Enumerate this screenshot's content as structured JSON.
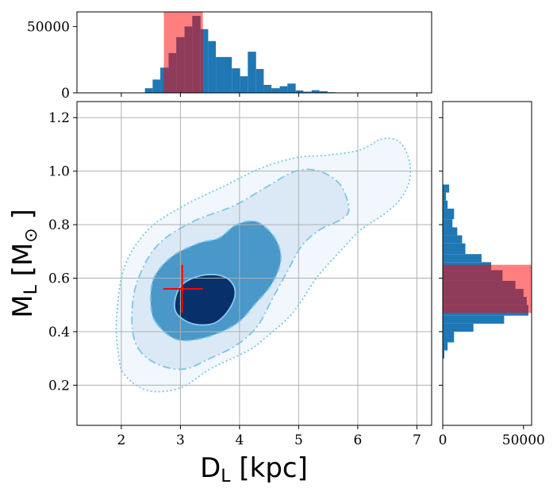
{
  "chart_data": [
    {
      "type": "contour",
      "name": "joint-posterior",
      "xlabel": "D",
      "xlabel_sub": "L",
      "xlabel_unit": " [kpc]",
      "ylabel": "M",
      "ylabel_sub": "L",
      "ylabel_unit": " [M",
      "ylabel_unit_sub": "⊙",
      "ylabel_unit_end": " ]",
      "xlim": [
        1.25,
        7.25
      ],
      "ylim": [
        0.05,
        1.26
      ],
      "xticks": [
        2,
        3,
        4,
        5,
        6,
        7
      ],
      "xtick_labels": [
        "2",
        "3",
        "4",
        "5",
        "6",
        "7"
      ],
      "yticks": [
        0.2,
        0.4,
        0.6,
        0.8,
        1.0,
        1.2
      ],
      "ytick_labels": [
        "0.2",
        "0.4",
        "0.6",
        "0.8",
        "1.0",
        "1.2"
      ],
      "grid": true,
      "contours": [
        {
          "level": "3-sigma",
          "fill": "#f1f7fd",
          "stroke": "#7cc6e6",
          "dash": "dotted",
          "points": [
            [
              2.05,
              0.24
            ],
            [
              2.45,
              0.18
            ],
            [
              3.0,
              0.19
            ],
            [
              3.5,
              0.26
            ],
            [
              4.15,
              0.33
            ],
            [
              4.45,
              0.38
            ],
            [
              4.9,
              0.47
            ],
            [
              5.3,
              0.6
            ],
            [
              5.7,
              0.7
            ],
            [
              6.05,
              0.78
            ],
            [
              6.45,
              0.84
            ],
            [
              6.7,
              0.89
            ],
            [
              6.87,
              0.96
            ],
            [
              6.87,
              1.04
            ],
            [
              6.7,
              1.11
            ],
            [
              6.4,
              1.12
            ],
            [
              6.05,
              1.08
            ],
            [
              5.5,
              1.06
            ],
            [
              4.95,
              1.05
            ],
            [
              4.35,
              1.01
            ],
            [
              3.7,
              0.94
            ],
            [
              3.05,
              0.87
            ],
            [
              2.45,
              0.78
            ],
            [
              2.05,
              0.64
            ],
            [
              1.92,
              0.45
            ],
            [
              1.95,
              0.32
            ]
          ]
        },
        {
          "level": "2-sigma",
          "fill": "#dbe9f6",
          "stroke": "#7cc6e6",
          "dash": "dashdot",
          "points": [
            [
              2.28,
              0.34
            ],
            [
              2.6,
              0.28
            ],
            [
              3.05,
              0.26
            ],
            [
              3.5,
              0.3
            ],
            [
              3.95,
              0.35
            ],
            [
              4.3,
              0.42
            ],
            [
              4.55,
              0.52
            ],
            [
              4.82,
              0.63
            ],
            [
              5.05,
              0.72
            ],
            [
              5.35,
              0.78
            ],
            [
              5.72,
              0.82
            ],
            [
              5.85,
              0.86
            ],
            [
              5.7,
              0.95
            ],
            [
              5.35,
              1.0
            ],
            [
              4.95,
              1.0
            ],
            [
              4.45,
              0.94
            ],
            [
              3.9,
              0.87
            ],
            [
              3.2,
              0.81
            ],
            [
              2.6,
              0.72
            ],
            [
              2.26,
              0.58
            ],
            [
              2.18,
              0.44
            ]
          ]
        },
        {
          "level": "1-sigma",
          "fill": "#4a97c9",
          "stroke": "#7cc6e6",
          "dash": "dashed",
          "points": [
            [
              2.6,
              0.43
            ],
            [
              2.95,
              0.37
            ],
            [
              3.45,
              0.38
            ],
            [
              3.95,
              0.43
            ],
            [
              4.25,
              0.5
            ],
            [
              4.55,
              0.58
            ],
            [
              4.7,
              0.67
            ],
            [
              4.6,
              0.75
            ],
            [
              4.3,
              0.81
            ],
            [
              3.95,
              0.8
            ],
            [
              3.65,
              0.75
            ],
            [
              3.3,
              0.73
            ],
            [
              2.85,
              0.68
            ],
            [
              2.55,
              0.6
            ],
            [
              2.5,
              0.5
            ]
          ]
        },
        {
          "level": "core",
          "fill": "#08306b",
          "stroke": "#8cc8ef",
          "dash": "solid",
          "points": [
            [
              2.93,
              0.47
            ],
            [
              3.2,
              0.43
            ],
            [
              3.55,
              0.43
            ],
            [
              3.78,
              0.47
            ],
            [
              3.92,
              0.53
            ],
            [
              3.88,
              0.58
            ],
            [
              3.68,
              0.61
            ],
            [
              3.35,
              0.61
            ],
            [
              3.05,
              0.58
            ],
            [
              2.92,
              0.53
            ]
          ]
        }
      ],
      "marker": {
        "x": 3.03,
        "y": 0.56,
        "x_err": [
          0.32,
          0.35
        ],
        "y_err": [
          0.09,
          0.09
        ],
        "color": "#ff0000"
      }
    },
    {
      "type": "histogram",
      "name": "top-histogram",
      "orientation": "vertical",
      "xlim": [
        1.25,
        7.25
      ],
      "ylim": [
        0,
        61000
      ],
      "yticks": [
        0,
        50000
      ],
      "ytick_labels": [
        "0",
        "50000"
      ],
      "bar_color": "#1f77b4",
      "bins": [
        [
          2.4,
          2.53,
          3500
        ],
        [
          2.53,
          2.66,
          10000
        ],
        [
          2.66,
          2.8,
          19000
        ],
        [
          2.8,
          2.93,
          30000
        ],
        [
          2.93,
          3.07,
          42000
        ],
        [
          3.07,
          3.2,
          50000
        ],
        [
          3.2,
          3.34,
          58000
        ],
        [
          3.34,
          3.47,
          48000
        ],
        [
          3.47,
          3.6,
          39000
        ],
        [
          3.6,
          3.74,
          27000
        ],
        [
          3.74,
          3.87,
          27000
        ],
        [
          3.87,
          4.01,
          18500
        ],
        [
          4.01,
          4.14,
          12500
        ],
        [
          4.14,
          4.28,
          31000
        ],
        [
          4.28,
          4.41,
          18000
        ],
        [
          4.41,
          4.54,
          6000
        ],
        [
          4.54,
          4.68,
          3500
        ],
        [
          4.68,
          4.81,
          5000
        ],
        [
          4.81,
          4.95,
          7000
        ],
        [
          4.95,
          5.08,
          1800
        ],
        [
          5.08,
          5.22,
          900
        ],
        [
          5.22,
          5.35,
          2000
        ],
        [
          5.35,
          5.49,
          1200
        ],
        [
          5.49,
          5.62,
          500
        ],
        [
          5.62,
          5.75,
          300
        ]
      ],
      "band": {
        "from": 2.72,
        "to": 3.38,
        "color": "#ff0000",
        "opacity": 0.5
      }
    },
    {
      "type": "histogram",
      "name": "right-histogram",
      "orientation": "horizontal",
      "ylim": [
        0.05,
        1.26
      ],
      "xlim": [
        0,
        55000
      ],
      "xticks": [
        0,
        50000
      ],
      "xtick_labels": [
        "0",
        "50000"
      ],
      "bar_color": "#1f77b4",
      "bins": [
        [
          0.3,
          0.33,
          1000
        ],
        [
          0.33,
          0.36,
          3000
        ],
        [
          0.36,
          0.4,
          7000
        ],
        [
          0.4,
          0.43,
          19000
        ],
        [
          0.43,
          0.46,
          38000
        ],
        [
          0.46,
          0.5,
          53000
        ],
        [
          0.5,
          0.53,
          52000
        ],
        [
          0.53,
          0.56,
          50000
        ],
        [
          0.56,
          0.59,
          45000
        ],
        [
          0.59,
          0.63,
          37000
        ],
        [
          0.63,
          0.66,
          30000
        ],
        [
          0.66,
          0.69,
          24000
        ],
        [
          0.69,
          0.73,
          14000
        ],
        [
          0.73,
          0.76,
          12000
        ],
        [
          0.76,
          0.79,
          9000
        ],
        [
          0.79,
          0.82,
          6000
        ],
        [
          0.82,
          0.86,
          7000
        ],
        [
          0.86,
          0.89,
          3000
        ],
        [
          0.89,
          0.92,
          2000
        ],
        [
          0.92,
          0.95,
          4000
        ]
      ],
      "band": {
        "from": 0.47,
        "to": 0.65,
        "color": "#ff0000",
        "opacity": 0.5
      }
    }
  ]
}
